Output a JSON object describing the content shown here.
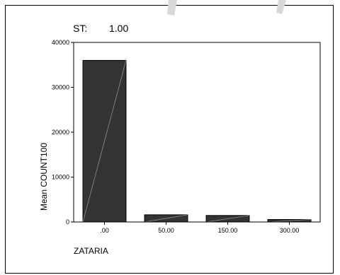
{
  "chart_data": {
    "type": "bar",
    "title_label": "ST:",
    "title_value": "1.00",
    "categories": [
      ".00",
      "50.00",
      "150.00",
      "300.00"
    ],
    "values": [
      36000,
      1600,
      1450,
      550
    ],
    "xlabel": "ZATARIA",
    "ylabel": "Mean COUNT100",
    "ylim": [
      0,
      40000
    ],
    "yticks": [
      0,
      10000,
      20000,
      30000,
      40000
    ],
    "ytick_labels": [
      "0",
      "10000",
      "20000",
      "30000",
      "40000"
    ],
    "grid": false,
    "bar_color": "#333333",
    "axis_color": "#000000",
    "watermark_color": "#d8d8d8"
  }
}
